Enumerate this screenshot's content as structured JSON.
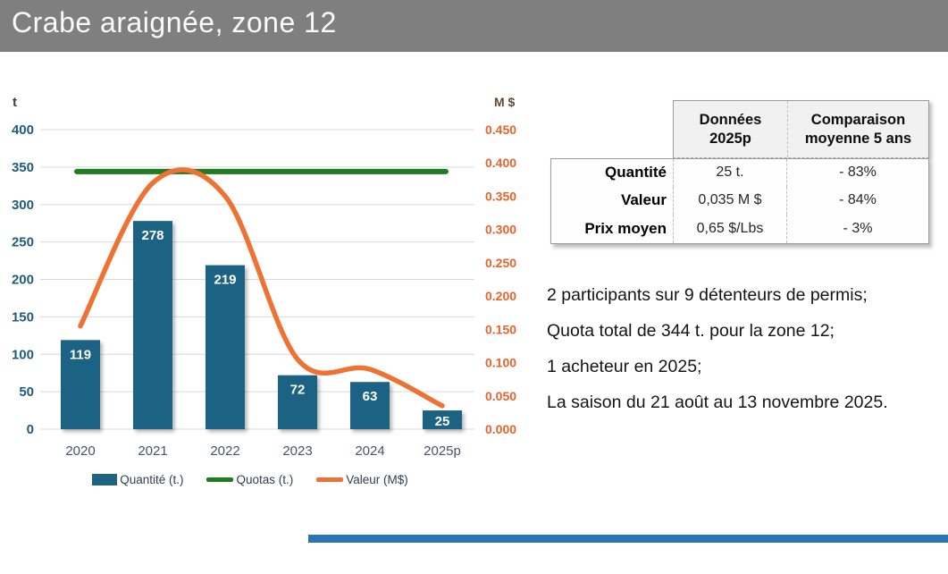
{
  "header": {
    "title": "Crabe araignée, zone 12"
  },
  "chart_data": {
    "type": "bar",
    "categories": [
      "2020",
      "2021",
      "2022",
      "2023",
      "2024",
      "2025p"
    ],
    "series": [
      {
        "name": "Quantité (t.)",
        "type": "bar",
        "axis": "left",
        "color": "#1F6282",
        "values": [
          119,
          278,
          219,
          72,
          63,
          25
        ]
      },
      {
        "name": "Quotas (t.)",
        "type": "line",
        "axis": "left",
        "color": "#1E7D20",
        "values": [
          344,
          344,
          344,
          344,
          344,
          344
        ]
      },
      {
        "name": "Valeur (M$)",
        "type": "line",
        "axis": "right",
        "color": "#ED7233",
        "values": [
          0.155,
          0.37,
          0.35,
          0.105,
          0.09,
          0.035
        ]
      }
    ],
    "left_axis": {
      "title": "t",
      "min": 0,
      "max": 400,
      "step": 50,
      "tick_color": "#1F5C78"
    },
    "right_axis": {
      "title": "M $",
      "min": 0,
      "max": 0.45,
      "step": 0.05,
      "tick_color": "#E8632C",
      "decimals": 3
    },
    "grid": true,
    "legend_position": "bottom",
    "bar_value_labels": true
  },
  "table": {
    "col_headers": [
      {
        "line1": "Données",
        "line2": "2025p"
      },
      {
        "line1": "Comparaison",
        "line2": "moyenne 5 ans"
      }
    ],
    "rows": [
      {
        "label": "Quantité",
        "value": "25 t.",
        "comparison": "- 83%"
      },
      {
        "label": "Valeur",
        "value": "0,035 M $",
        "comparison": "- 84%"
      },
      {
        "label": "Prix moyen",
        "value": "0,65 $/Lbs",
        "comparison": "- 3%"
      }
    ]
  },
  "notes": [
    "2 participants sur 9 détenteurs de permis;",
    "Quota total de 344 t. pour la zone 12;",
    "1 acheteur en 2025;",
    "La saison du 21 août au 13 novembre 2025."
  ],
  "colors": {
    "header_bg": "#7F7F7F",
    "header_text": "#FBFBFB",
    "bar": "#1F6282",
    "quota_line": "#1E7D20",
    "value_line": "#ED7233",
    "left_ticks": "#1F5C78",
    "right_ticks": "#E8632C",
    "gridline": "#D9D9D9",
    "category_labels": "#44546A",
    "footer_accent": "#2E74B5"
  }
}
